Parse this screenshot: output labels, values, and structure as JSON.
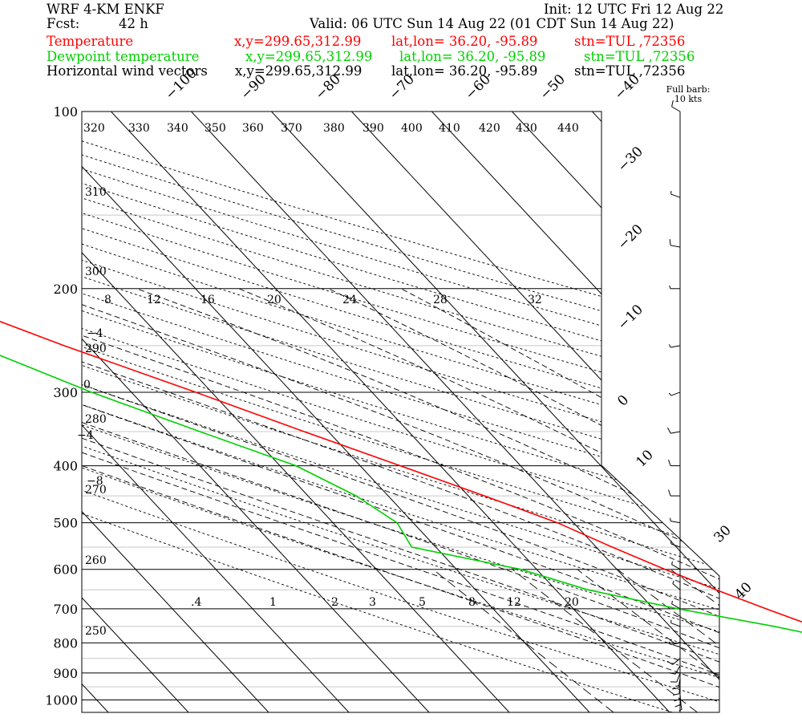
{
  "header": {
    "model": "WRF 4-KM ENKF",
    "init": "Init: 12 UTC Fri 12 Aug 22",
    "fcst_label": "Fcst:",
    "fcst": "42 h",
    "valid": "Valid: 06 UTC Sun 14 Aug 22 (01 CDT Sun 14 Aug 22)",
    "legend": [
      {
        "name": "Temperature",
        "xy": "x,y=299.65,312.99",
        "latlon": "lat,lon= 36.20, -95.89",
        "stn": "stn=TUL ,72356",
        "color": "#ff0000"
      },
      {
        "name": "Dewpoint temperature",
        "xy": "x,y=299.65,312.99",
        "latlon": "lat,lon= 36.20, -95.89",
        "stn": "stn=TUL ,72356",
        "color": "#00d000"
      },
      {
        "name": "Horizontal wind vectors",
        "xy": "x,y=299.65,312.99",
        "latlon": "lat,lon= 36.20, -95.89",
        "stn": "stn=TUL ,72356",
        "color": "#000000"
      }
    ],
    "barb_note": [
      "Full barb:",
      "10 kts"
    ]
  },
  "chart_data": {
    "type": "line",
    "diagram": "skew-T log-p",
    "y_scale": "log",
    "y_axis_pressure_hPa": [
      100,
      200,
      300,
      400,
      500,
      600,
      700,
      800,
      900,
      1000
    ],
    "isotherm_labels_C": [
      -100,
      -90,
      -80,
      -70,
      -60,
      -50,
      -40,
      -30,
      -20,
      -10,
      0,
      10,
      30,
      40
    ],
    "dry_adiabat_labels_K": [
      320,
      330,
      340,
      350,
      360,
      370,
      380,
      390,
      400,
      410,
      420,
      430,
      440,
      310,
      300,
      290,
      280,
      270,
      260,
      250
    ],
    "pseudoadiabat_labels_C": [
      -4,
      0,
      -4,
      -8,
      8,
      12,
      16,
      20,
      24,
      28,
      32
    ],
    "mixing_ratio_labels": [
      ".4",
      "1",
      "2",
      "3",
      "5",
      "8",
      "12",
      "20"
    ],
    "series": [
      {
        "name": "Temperature",
        "color": "#ff0000",
        "pressure": [
          980,
          950,
          900,
          850,
          800,
          750,
          700,
          650,
          600,
          550,
          500,
          450,
          400,
          350,
          300,
          250,
          220,
          200,
          180,
          160,
          140,
          120,
          110,
          100
        ],
        "temp_C": [
          26,
          25,
          20,
          16,
          12,
          8,
          4,
          0,
          -4,
          -8,
          -12,
          -18,
          -25,
          -33,
          -42,
          -53,
          -60,
          -64,
          -70,
          -72,
          -69,
          -62,
          -59,
          -57
        ]
      },
      {
        "name": "Dewpoint temperature",
        "color": "#00d000",
        "pressure": [
          980,
          950,
          900,
          850,
          800,
          750,
          700,
          650,
          600,
          550,
          500,
          450,
          400,
          350,
          300,
          250,
          200,
          180,
          160,
          140,
          120,
          110,
          100
        ],
        "temp_C": [
          18,
          16,
          14,
          13,
          11,
          3,
          -7,
          -16,
          -22,
          -33,
          -32,
          -34,
          -38,
          -46,
          -55,
          -64,
          -73,
          -78,
          -82,
          -84,
          -83,
          -81,
          -79
        ]
      }
    ],
    "wind_barbs": {
      "units": "kts",
      "pressure": [
        1000,
        980,
        960,
        940,
        920,
        900,
        875,
        850,
        800,
        750,
        700,
        650,
        600,
        550,
        500,
        450,
        400,
        350,
        300,
        250,
        200,
        170,
        140,
        100
      ],
      "speed_kts": [
        8,
        10,
        12,
        14,
        15,
        14,
        12,
        10,
        8,
        6,
        5,
        6,
        7,
        8,
        9,
        10,
        12,
        10,
        8,
        8,
        9,
        10,
        8,
        10
      ],
      "dir_deg": [
        170,
        175,
        180,
        185,
        190,
        200,
        210,
        230,
        260,
        290,
        300,
        310,
        300,
        290,
        280,
        270,
        270,
        260,
        250,
        260,
        270,
        280,
        290,
        300
      ]
    }
  }
}
